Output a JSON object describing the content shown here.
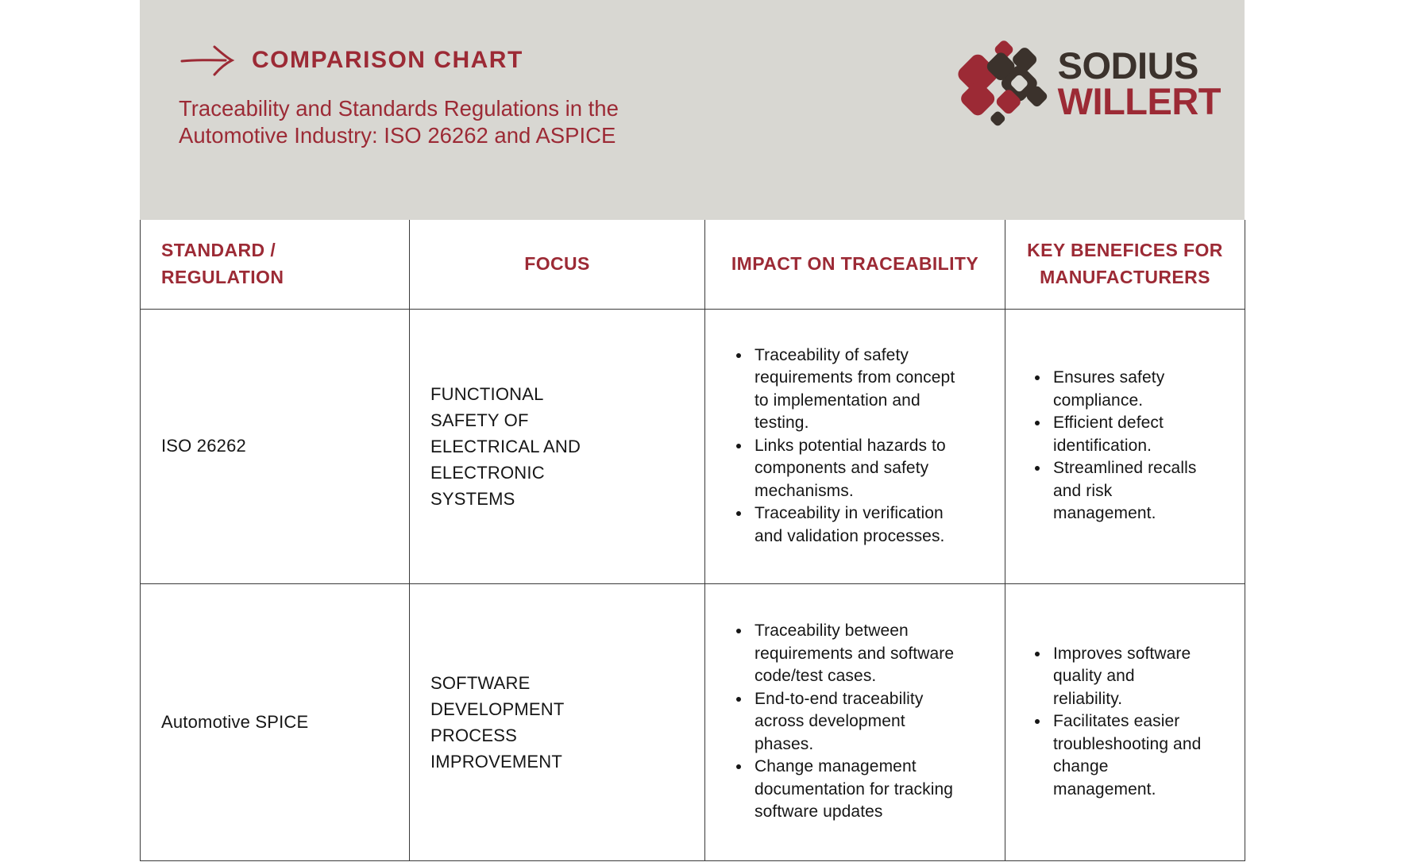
{
  "colors": {
    "accent_red": "#9C2A35",
    "logo_brown": "#3B322C",
    "panel_gray": "#D8D7D2",
    "body_text": "#161616",
    "table_border": "#3A3A3A"
  },
  "hero": {
    "title": "COMPARISON CHART",
    "subtitle": "Traceability and Standards Regulations in the Automotive Industry: ISO 26262 and ASPICE",
    "logo": {
      "line1": "SODIUS",
      "line2": "WILLERT"
    }
  },
  "table": {
    "headers": [
      "STANDARD / REGULATION",
      "FOCUS",
      "IMPACT ON TRACEABILITY",
      "KEY BENEFICES FOR MANUFACTURERS"
    ],
    "rows": [
      {
        "standard": "ISO 26262",
        "focus": "FUNCTIONAL SAFETY OF ELECTRICAL AND ELECTRONIC SYSTEMS",
        "impact": [
          "Traceability of safety requirements from concept to implementation and testing.",
          "Links potential hazards to components and safety mechanisms.",
          "Traceability in verification and validation processes."
        ],
        "benefits": [
          "Ensures safety compliance.",
          "Efficient defect identification.",
          "Streamlined recalls and risk management."
        ]
      },
      {
        "standard": "Automotive SPICE",
        "focus": "SOFTWARE DEVELOPMENT PROCESS IMPROVEMENT",
        "impact": [
          "Traceability between requirements and software code/test cases.",
          "End-to-end traceability across development phases.",
          "Change management documentation for tracking software updates"
        ],
        "benefits": [
          "Improves software quality and reliability.",
          "Facilitates easier troubleshooting and change management."
        ]
      }
    ]
  }
}
